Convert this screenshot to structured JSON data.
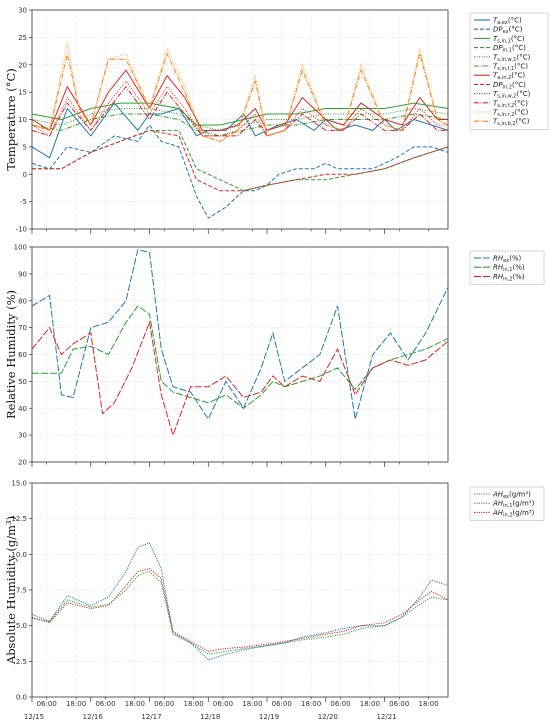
{
  "x_ticks": {
    "minor": [
      "06:00",
      "18:00",
      "06:00",
      "18:00",
      "06:00",
      "18:00",
      "06:00",
      "18:00",
      "06:00",
      "18:00",
      "06:00",
      "18:00",
      "06:00",
      "18:00"
    ],
    "dates": [
      "12/15",
      "12/16",
      "12/17",
      "12/18",
      "12/19",
      "12/20",
      "12/21"
    ]
  },
  "chart_data": [
    {
      "type": "line",
      "ylabel": "Temperature (°C)",
      "ylim": [
        -10,
        30
      ],
      "yticks": [
        "-10",
        "-5",
        "0",
        "5",
        "10",
        "15",
        "20",
        "25",
        "30"
      ],
      "x_unit": "days since 12/15 00:00",
      "xlim": [
        0,
        7.08
      ],
      "grid": true,
      "legend": "top-right",
      "series": [
        {
          "name": "T_a,ex(°C)",
          "color": "#1f77b4",
          "dash": "solid",
          "x": [
            0,
            0.3,
            0.6,
            1.0,
            1.4,
            1.8,
            2.0,
            2.2,
            2.5,
            2.8,
            3.0,
            3.3,
            3.6,
            3.8,
            4.0,
            4.2,
            4.5,
            4.8,
            5.0,
            5.2,
            5.5,
            5.8,
            6.0,
            6.2,
            6.5,
            6.8,
            7.08
          ],
          "values": [
            5,
            3,
            12,
            7,
            13,
            8,
            11,
            11,
            12,
            7,
            8,
            8,
            11,
            7,
            8,
            9,
            10,
            8,
            10,
            8,
            9,
            8,
            10,
            8,
            10,
            9,
            8
          ]
        },
        {
          "name": "DP_ex(°C)",
          "color": "#1f77b4",
          "dash": "4 2",
          "x": [
            0,
            0.3,
            0.6,
            1.0,
            1.4,
            1.8,
            2.0,
            2.2,
            2.5,
            2.8,
            3.0,
            3.3,
            3.6,
            3.8,
            4.0,
            4.2,
            4.5,
            4.8,
            5.0,
            5.2,
            5.5,
            5.8,
            6.0,
            6.2,
            6.5,
            6.8,
            7.08
          ],
          "values": [
            2,
            1,
            5,
            4,
            7,
            6,
            9,
            6,
            5,
            -4,
            -8,
            -6,
            -3,
            -3,
            -2,
            0,
            1,
            1,
            2,
            1,
            1,
            1,
            2,
            3,
            5,
            5,
            4
          ]
        },
        {
          "name": "T_s,in,1(°C)",
          "color": "#2ca02c",
          "dash": "solid",
          "x": [
            0,
            0.5,
            1.0,
            1.5,
            2.0,
            2.5,
            2.8,
            3.2,
            3.6,
            4.0,
            4.5,
            5.0,
            5.5,
            6.0,
            6.5,
            7.08
          ],
          "values": [
            11,
            10,
            12,
            13,
            13,
            12,
            9,
            9,
            10,
            11,
            11,
            12,
            12,
            12,
            13,
            12
          ]
        },
        {
          "name": "DP_in,1(°C)",
          "color": "#2ca02c",
          "dash": "4 2",
          "x": [
            0,
            0.5,
            1.0,
            1.5,
            2.0,
            2.5,
            2.8,
            3.2,
            3.6,
            4.0,
            4.5,
            5.0,
            5.5,
            6.0,
            6.5,
            7.08
          ],
          "values": [
            1,
            1,
            4,
            6,
            8,
            8,
            1,
            -1,
            -3,
            -2,
            -1,
            -1,
            0,
            1,
            3,
            5
          ]
        },
        {
          "name": "T_s,in,w,1(°C)",
          "color": "#2ca02c",
          "dash": "1 1.5",
          "x": [
            0,
            0.5,
            1.0,
            1.5,
            2.0,
            2.5,
            2.8,
            3.2,
            3.6,
            4.0,
            4.5,
            5.0,
            5.5,
            6.0,
            6.5,
            7.08
          ],
          "values": [
            10,
            9,
            11,
            12,
            12,
            11,
            9,
            8,
            9,
            10,
            10,
            11,
            11,
            11,
            12,
            11
          ]
        },
        {
          "name": "T_s,in,f,1(°C)",
          "color": "#2ca02c",
          "dash": "5 1.5 1 1.5",
          "x": [
            0,
            0.5,
            1.0,
            1.5,
            2.0,
            2.5,
            2.8,
            3.2,
            3.6,
            4.0,
            4.5,
            5.0,
            5.5,
            6.0,
            6.5,
            7.08
          ],
          "values": [
            9,
            8,
            10,
            11,
            11,
            10,
            8,
            7,
            8,
            9,
            9,
            10,
            10,
            10,
            11,
            10
          ]
        },
        {
          "name": "T_a,in,2(°C)",
          "color": "#d62728",
          "dash": "solid",
          "x": [
            0,
            0.3,
            0.6,
            1.0,
            1.3,
            1.6,
            2.0,
            2.3,
            2.6,
            2.9,
            3.2,
            3.5,
            3.8,
            4.0,
            4.3,
            4.6,
            5.0,
            5.3,
            5.6,
            6.0,
            6.3,
            6.6,
            6.9,
            7.08
          ],
          "values": [
            10,
            8,
            16,
            9,
            15,
            19,
            12,
            18,
            14,
            8,
            8,
            9,
            12,
            8,
            9,
            14,
            10,
            9,
            13,
            10,
            9,
            14,
            10,
            10
          ]
        },
        {
          "name": "DP_in,2(°C)",
          "color": "#d62728",
          "dash": "4 2",
          "x": [
            0,
            0.5,
            1.0,
            1.5,
            2.0,
            2.5,
            2.8,
            3.2,
            3.6,
            4.0,
            4.5,
            5.0,
            5.5,
            6.0,
            6.5,
            7.08
          ],
          "values": [
            1,
            1,
            4,
            6,
            8,
            7,
            -1,
            -3,
            -3,
            -2,
            -1,
            0,
            0,
            1,
            3,
            5
          ]
        },
        {
          "name": "T_s,in,w,2(°C)",
          "color": "#d62728",
          "dash": "1 1.5",
          "x": [
            0,
            0.3,
            0.6,
            1.0,
            1.3,
            1.6,
            2.0,
            2.3,
            2.6,
            2.9,
            3.2,
            3.5,
            3.8,
            4.0,
            4.3,
            4.6,
            5.0,
            5.3,
            5.6,
            6.0,
            6.3,
            6.6,
            6.9,
            7.08
          ],
          "values": [
            9,
            7,
            14,
            8,
            13,
            17,
            11,
            16,
            12,
            7,
            7,
            8,
            11,
            7,
            8,
            12,
            9,
            8,
            12,
            9,
            8,
            12,
            9,
            9
          ]
        },
        {
          "name": "T_s,in,f,2(°C)",
          "color": "#d62728",
          "dash": "5 1.5 1 1.5",
          "x": [
            0,
            0.3,
            0.6,
            1.0,
            1.3,
            1.6,
            2.0,
            2.3,
            2.6,
            2.9,
            3.2,
            3.5,
            3.8,
            4.0,
            4.3,
            4.6,
            5.0,
            5.3,
            5.6,
            6.0,
            6.3,
            6.6,
            6.9,
            7.08
          ],
          "values": [
            8,
            7,
            13,
            8,
            12,
            16,
            10,
            15,
            11,
            7,
            7,
            7,
            10,
            7,
            8,
            11,
            8,
            8,
            11,
            8,
            8,
            11,
            8,
            8
          ]
        },
        {
          "name": "T_s,in,r,2(°C)",
          "color": "#ffa040",
          "dash": "1 1.5",
          "x": [
            0,
            0.3,
            0.6,
            0.8,
            1.0,
            1.3,
            1.6,
            2.0,
            2.3,
            2.6,
            2.9,
            3.2,
            3.5,
            3.8,
            4.0,
            4.3,
            4.6,
            5.0,
            5.3,
            5.6,
            6.0,
            6.3,
            6.6,
            6.9,
            7.08
          ],
          "values": [
            9,
            8,
            24,
            12,
            9,
            21,
            22,
            12,
            23,
            16,
            7,
            6,
            8,
            18,
            7,
            8,
            20,
            9,
            8,
            20,
            9,
            8,
            23,
            10,
            9
          ]
        },
        {
          "name": "T_s,in,b,2(°C)",
          "color": "#ff7f0e",
          "dash": "5 1.5 1 1.5",
          "x": [
            0,
            0.3,
            0.6,
            0.8,
            1.0,
            1.3,
            1.6,
            2.0,
            2.3,
            2.6,
            2.9,
            3.2,
            3.5,
            3.8,
            4.0,
            4.3,
            4.6,
            5.0,
            5.3,
            5.6,
            6.0,
            6.3,
            6.6,
            6.9,
            7.08
          ],
          "values": [
            9,
            8,
            22,
            12,
            9,
            21,
            21,
            12,
            22,
            15,
            7,
            6,
            8,
            17,
            7,
            8,
            19,
            9,
            8,
            19,
            9,
            8,
            22,
            10,
            9
          ]
        }
      ]
    },
    {
      "type": "line",
      "ylabel": "Relative Humidity (%)",
      "ylim": [
        20,
        100
      ],
      "yticks": [
        "20",
        "30",
        "40",
        "50",
        "60",
        "70",
        "80",
        "90",
        "100"
      ],
      "x_unit": "days since 12/15 00:00",
      "xlim": [
        0,
        7.08
      ],
      "grid": true,
      "legend": "top-right",
      "series": [
        {
          "name": "RH_ex(%)",
          "color": "#1f77b4",
          "dash": "7 2",
          "x": [
            0,
            0.3,
            0.5,
            0.7,
            1.0,
            1.3,
            1.6,
            1.8,
            2.0,
            2.2,
            2.4,
            2.7,
            3.0,
            3.3,
            3.6,
            3.9,
            4.1,
            4.3,
            4.6,
            4.9,
            5.2,
            5.5,
            5.8,
            6.1,
            6.4,
            6.7,
            7.08
          ],
          "values": [
            78,
            82,
            45,
            44,
            70,
            72,
            80,
            99,
            98,
            62,
            48,
            46,
            36,
            50,
            40,
            55,
            68,
            50,
            55,
            60,
            78,
            36,
            60,
            68,
            58,
            68,
            85
          ]
        },
        {
          "name": "RH_in,1(%)",
          "color": "#2ca02c",
          "dash": "7 2",
          "x": [
            0,
            0.3,
            0.5,
            0.7,
            1.0,
            1.3,
            1.6,
            1.8,
            2.0,
            2.2,
            2.4,
            2.7,
            3.0,
            3.3,
            3.6,
            3.9,
            4.1,
            4.3,
            4.6,
            4.9,
            5.2,
            5.5,
            5.8,
            6.1,
            6.4,
            6.7,
            7.08
          ],
          "values": [
            53,
            53,
            53,
            62,
            63,
            60,
            72,
            78,
            75,
            50,
            46,
            44,
            42,
            45,
            40,
            45,
            50,
            48,
            50,
            52,
            55,
            47,
            55,
            58,
            60,
            62,
            66
          ]
        },
        {
          "name": "RH_in,2(%)",
          "color": "#d62728",
          "dash": "7 2",
          "x": [
            0,
            0.3,
            0.5,
            0.7,
            1.0,
            1.2,
            1.4,
            1.7,
            2.0,
            2.2,
            2.4,
            2.7,
            3.0,
            3.3,
            3.6,
            3.9,
            4.1,
            4.3,
            4.6,
            4.9,
            5.2,
            5.5,
            5.8,
            6.1,
            6.4,
            6.7,
            7.08
          ],
          "values": [
            62,
            70,
            60,
            64,
            68,
            38,
            42,
            55,
            72,
            45,
            30,
            48,
            48,
            52,
            44,
            46,
            52,
            48,
            52,
            50,
            62,
            45,
            55,
            58,
            56,
            58,
            65
          ]
        }
      ]
    },
    {
      "type": "line",
      "ylabel": "Absolute Humidity (g/m³)",
      "ylim": [
        0,
        15
      ],
      "yticks": [
        "0.0",
        "2.5",
        "5.0",
        "7.5",
        "10.0",
        "12.5",
        "15.0"
      ],
      "x_unit": "days since 12/15 00:00",
      "xlim": [
        0,
        7.08
      ],
      "grid": true,
      "legend": "top-right",
      "series": [
        {
          "name": "AH_ex(g/m³)",
          "color": "#1f77b4",
          "dash": "1.2 1.2",
          "x": [
            0,
            0.3,
            0.6,
            1.0,
            1.3,
            1.6,
            1.8,
            2.0,
            2.2,
            2.4,
            2.7,
            3.0,
            3.3,
            3.6,
            4.0,
            4.3,
            4.6,
            5.0,
            5.3,
            5.6,
            6.0,
            6.3,
            6.6,
            6.8,
            7.08
          ],
          "values": [
            5.8,
            5.3,
            7.1,
            6.4,
            7.0,
            8.8,
            10.5,
            10.8,
            9.0,
            4.5,
            3.8,
            2.6,
            3.0,
            3.3,
            3.6,
            3.8,
            4.2,
            4.5,
            4.8,
            5.0,
            5.0,
            5.6,
            7.0,
            8.2,
            7.8
          ]
        },
        {
          "name": "AH_in,1(g/m³)",
          "color": "#2ca02c",
          "dash": "1.2 1.2",
          "x": [
            0,
            0.3,
            0.6,
            1.0,
            1.3,
            1.6,
            1.8,
            2.0,
            2.2,
            2.4,
            2.7,
            3.0,
            3.3,
            3.6,
            4.0,
            4.3,
            4.6,
            5.0,
            5.3,
            5.6,
            6.0,
            6.3,
            6.6,
            6.8,
            7.08
          ],
          "values": [
            5.5,
            5.3,
            6.8,
            6.3,
            6.5,
            7.5,
            8.5,
            8.8,
            8.0,
            4.4,
            3.8,
            3.0,
            3.2,
            3.4,
            3.6,
            3.8,
            4.0,
            4.2,
            4.4,
            4.8,
            5.0,
            5.6,
            6.5,
            7.0,
            6.8
          ]
        },
        {
          "name": "AH_in,2(g/m³)",
          "color": "#d62728",
          "dash": "1.2 1.2",
          "x": [
            0,
            0.3,
            0.6,
            1.0,
            1.3,
            1.6,
            1.8,
            2.0,
            2.2,
            2.4,
            2.7,
            3.0,
            3.3,
            3.6,
            4.0,
            4.3,
            4.6,
            5.0,
            5.3,
            5.6,
            6.0,
            6.3,
            6.6,
            6.8,
            7.08
          ],
          "values": [
            5.6,
            5.2,
            6.6,
            6.2,
            6.4,
            7.8,
            8.8,
            9.0,
            8.3,
            4.6,
            3.9,
            3.2,
            3.4,
            3.5,
            3.7,
            3.9,
            4.1,
            4.4,
            4.6,
            5.0,
            5.2,
            5.8,
            6.8,
            7.4,
            6.8
          ]
        }
      ]
    }
  ]
}
